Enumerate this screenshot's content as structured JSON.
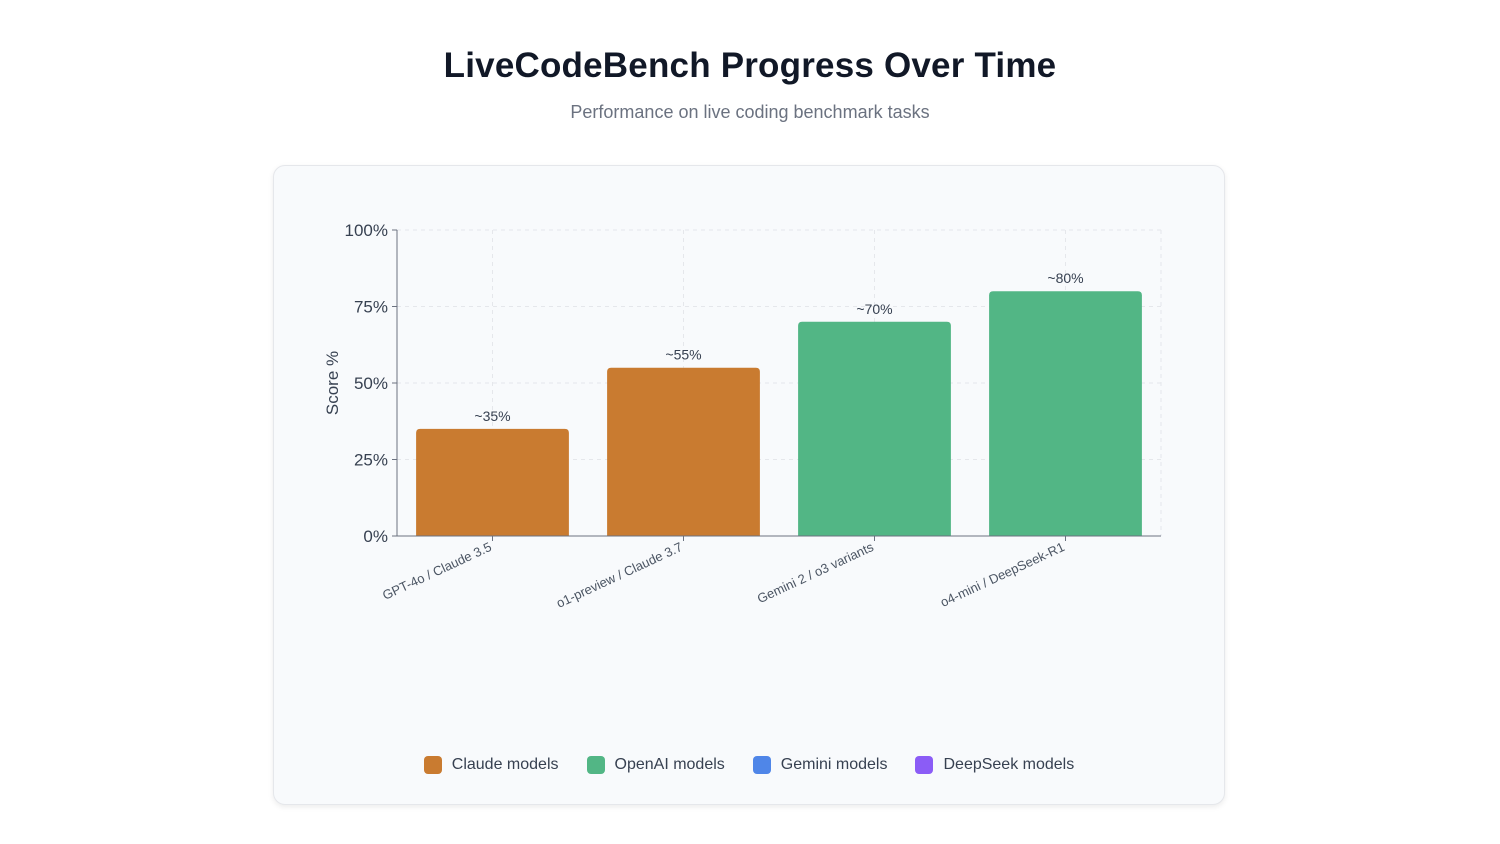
{
  "title": "LiveCodeBench Progress Over Time",
  "subtitle": "Performance on live coding benchmark tasks",
  "chart_data": {
    "type": "bar",
    "title": "LiveCodeBench Progress Over Time",
    "subtitle": "Performance on live coding benchmark tasks",
    "ylabel": "Score %",
    "xlabel": "",
    "ylim": [
      0,
      100
    ],
    "yticks": [
      0,
      25,
      50,
      75,
      100
    ],
    "ytick_labels": [
      "0%",
      "25%",
      "50%",
      "75%",
      "100%"
    ],
    "categories": [
      "GPT-4o / Claude 3.5",
      "o1-preview / Claude 3.7",
      "Gemini 2 / o3 variants",
      "o4-mini / DeepSeek-R1"
    ],
    "values": [
      35,
      55,
      70,
      80
    ],
    "data_labels": [
      "~35%",
      "~55%",
      "~70%",
      "~80%"
    ],
    "bar_colors": [
      "#c97b30",
      "#c97b30",
      "#52b685",
      "#52b685"
    ],
    "grid": true,
    "legend_position": "bottom",
    "legend": [
      {
        "label": "Claude models",
        "color": "#c97b30"
      },
      {
        "label": "OpenAI models",
        "color": "#52b685"
      },
      {
        "label": "Gemini models",
        "color": "#4f86e8"
      },
      {
        "label": "DeepSeek models",
        "color": "#8b5cf6"
      }
    ]
  }
}
